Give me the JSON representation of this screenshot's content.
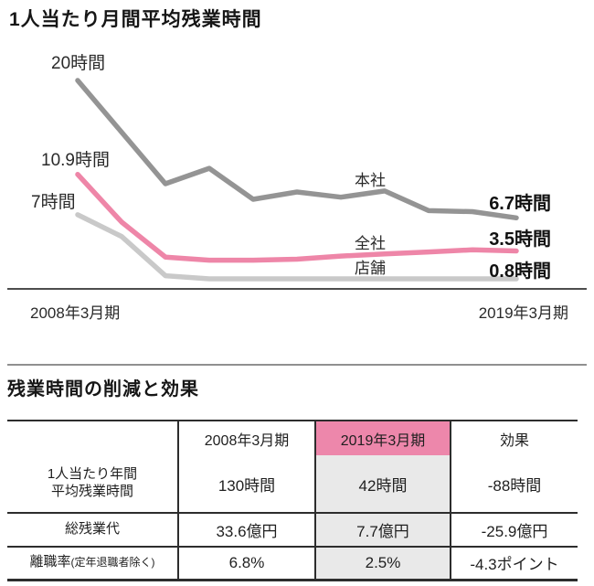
{
  "chart_data": {
    "type": "line",
    "title": "1人当たり月間平均残業時間",
    "unit": "時間",
    "ylim": [
      0,
      20
    ],
    "x_axis": {
      "start": "2008年3月期",
      "end": "2019年3月期",
      "points": 11
    },
    "legend_position": "inline-right",
    "grid": false,
    "series": [
      {
        "name": "本社",
        "color": "#949494",
        "start_label": "20時間",
        "end_label": "6.7時間",
        "values": [
          20,
          15,
          10,
          11.5,
          8.5,
          9.2,
          8.7,
          9.3,
          7.4,
          7.3,
          6.7
        ]
      },
      {
        "name": "全社",
        "color": "#ee86a8",
        "start_label": "10.9時間",
        "end_label": "3.5時間",
        "values": [
          10.9,
          6.3,
          2.9,
          2.6,
          2.6,
          2.7,
          3.0,
          3.2,
          3.4,
          3.6,
          3.5
        ]
      },
      {
        "name": "店舗",
        "color": "#c9c9c9",
        "start_label": "7時間",
        "end_label": "0.8時間",
        "values": [
          7,
          4.9,
          1.1,
          0.8,
          0.8,
          0.8,
          0.8,
          0.8,
          0.8,
          0.8,
          0.8
        ]
      }
    ],
    "axis_color": "#4d4d4d"
  },
  "table_section": {
    "title": "残業時間の削減と効果",
    "columns": [
      "",
      "2008年3月期",
      "2019年3月期",
      "効果"
    ],
    "highlight_header_color": "#ed87ab",
    "highlight_body_color": "#e9e9e9",
    "rows": [
      {
        "label_lines": [
          "1人当たり年間",
          "平均残業時間"
        ],
        "values": [
          "130時間",
          "42時間",
          "-88時間"
        ]
      },
      {
        "label": "総残業代",
        "values": [
          "33.6億円",
          "7.7億円",
          "-25.9億円"
        ]
      },
      {
        "label_main": "離職率",
        "label_sub": "(定年退職者除く)",
        "values": [
          "6.8%",
          "2.5%",
          "-4.3ポイント"
        ]
      }
    ]
  }
}
